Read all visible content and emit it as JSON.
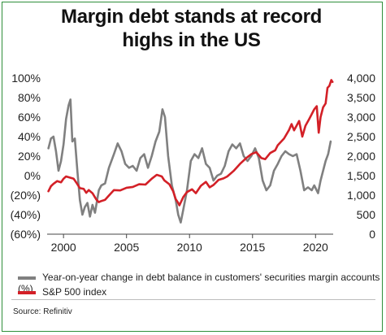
{
  "chart_data": {
    "type": "line",
    "title_lines": [
      "Margin debt stands at record",
      "highs in the US"
    ],
    "y_left": {
      "ticks": [
        "100%",
        "80%",
        "60%",
        "40%",
        "20%",
        "0%",
        "(20%)",
        "(40%)",
        "(60%)"
      ],
      "ylim": [
        -60,
        100
      ]
    },
    "y_right": {
      "ticks": [
        "4,000",
        "3,500",
        "3,000",
        "2,500",
        "2,000",
        "1,500",
        "1,000",
        "500",
        "0"
      ],
      "ylim": [
        0,
        4000
      ]
    },
    "x": {
      "ticks": [
        "2000",
        "2005",
        "2010",
        "2015",
        "2020"
      ],
      "xlim": [
        1998.7,
        2021.4
      ]
    },
    "grid": false,
    "series": [
      {
        "name": "Year-on-year change in debt balance in customers' securities margin accounts (%)",
        "color": "#808080",
        "axis": "left",
        "points": [
          [
            1998.8,
            28
          ],
          [
            1999.0,
            38
          ],
          [
            1999.2,
            40
          ],
          [
            1999.4,
            25
          ],
          [
            1999.6,
            5
          ],
          [
            1999.8,
            15
          ],
          [
            2000.0,
            32
          ],
          [
            2000.2,
            58
          ],
          [
            2000.4,
            72
          ],
          [
            2000.55,
            78
          ],
          [
            2000.7,
            35
          ],
          [
            2000.9,
            38
          ],
          [
            2001.1,
            5
          ],
          [
            2001.3,
            -25
          ],
          [
            2001.5,
            -40
          ],
          [
            2001.7,
            -32
          ],
          [
            2001.9,
            -28
          ],
          [
            2002.1,
            -42
          ],
          [
            2002.3,
            -30
          ],
          [
            2002.5,
            -38
          ],
          [
            2002.8,
            -15
          ],
          [
            2003.0,
            -10
          ],
          [
            2003.3,
            -8
          ],
          [
            2003.6,
            8
          ],
          [
            2004.0,
            22
          ],
          [
            2004.3,
            33
          ],
          [
            2004.6,
            25
          ],
          [
            2004.9,
            12
          ],
          [
            2005.2,
            8
          ],
          [
            2005.5,
            10
          ],
          [
            2005.8,
            5
          ],
          [
            2006.1,
            18
          ],
          [
            2006.4,
            22
          ],
          [
            2006.7,
            8
          ],
          [
            2007.0,
            20
          ],
          [
            2007.3,
            35
          ],
          [
            2007.6,
            45
          ],
          [
            2007.85,
            68
          ],
          [
            2008.05,
            60
          ],
          [
            2008.3,
            20
          ],
          [
            2008.6,
            -10
          ],
          [
            2008.9,
            -25
          ],
          [
            2009.1,
            -40
          ],
          [
            2009.3,
            -48
          ],
          [
            2009.5,
            -35
          ],
          [
            2009.8,
            -15
          ],
          [
            2010.1,
            15
          ],
          [
            2010.4,
            22
          ],
          [
            2010.7,
            18
          ],
          [
            2011.0,
            28
          ],
          [
            2011.3,
            12
          ],
          [
            2011.6,
            8
          ],
          [
            2011.9,
            -5
          ],
          [
            2012.2,
            0
          ],
          [
            2012.5,
            2
          ],
          [
            2012.8,
            10
          ],
          [
            2013.1,
            25
          ],
          [
            2013.4,
            32
          ],
          [
            2013.7,
            28
          ],
          [
            2014.0,
            33
          ],
          [
            2014.3,
            20
          ],
          [
            2014.6,
            15
          ],
          [
            2014.9,
            20
          ],
          [
            2015.2,
            28
          ],
          [
            2015.5,
            18
          ],
          [
            2015.8,
            -5
          ],
          [
            2016.1,
            -15
          ],
          [
            2016.4,
            -10
          ],
          [
            2016.7,
            5
          ],
          [
            2017.0,
            12
          ],
          [
            2017.3,
            20
          ],
          [
            2017.6,
            25
          ],
          [
            2017.9,
            22
          ],
          [
            2018.2,
            20
          ],
          [
            2018.5,
            22
          ],
          [
            2018.8,
            5
          ],
          [
            2019.1,
            -15
          ],
          [
            2019.4,
            -12
          ],
          [
            2019.7,
            -15
          ],
          [
            2019.9,
            -10
          ],
          [
            2020.2,
            -18
          ],
          [
            2020.4,
            -5
          ],
          [
            2020.6,
            5
          ],
          [
            2020.8,
            15
          ],
          [
            2021.0,
            22
          ],
          [
            2021.2,
            35
          ]
        ]
      },
      {
        "name": "S&P 500 index",
        "color": "#d32027",
        "axis": "right",
        "points": [
          [
            1998.8,
            1100
          ],
          [
            1999.0,
            1230
          ],
          [
            1999.2,
            1290
          ],
          [
            1999.5,
            1360
          ],
          [
            1999.8,
            1330
          ],
          [
            2000.0,
            1420
          ],
          [
            2000.2,
            1480
          ],
          [
            2000.5,
            1450
          ],
          [
            2000.8,
            1420
          ],
          [
            2001.0,
            1330
          ],
          [
            2001.3,
            1180
          ],
          [
            2001.6,
            1160
          ],
          [
            2001.8,
            1060
          ],
          [
            2002.0,
            1130
          ],
          [
            2002.3,
            1050
          ],
          [
            2002.6,
            890
          ],
          [
            2002.8,
            820
          ],
          [
            2003.0,
            850
          ],
          [
            2003.3,
            880
          ],
          [
            2003.6,
            990
          ],
          [
            2004.0,
            1130
          ],
          [
            2004.5,
            1120
          ],
          [
            2005.0,
            1190
          ],
          [
            2005.5,
            1210
          ],
          [
            2006.0,
            1280
          ],
          [
            2006.5,
            1270
          ],
          [
            2007.0,
            1420
          ],
          [
            2007.4,
            1520
          ],
          [
            2007.8,
            1480
          ],
          [
            2008.0,
            1380
          ],
          [
            2008.4,
            1280
          ],
          [
            2008.7,
            1100
          ],
          [
            2008.9,
            900
          ],
          [
            2009.1,
            800
          ],
          [
            2009.2,
            740
          ],
          [
            2009.5,
            950
          ],
          [
            2009.8,
            1080
          ],
          [
            2010.2,
            1150
          ],
          [
            2010.5,
            1050
          ],
          [
            2010.9,
            1240
          ],
          [
            2011.3,
            1340
          ],
          [
            2011.6,
            1200
          ],
          [
            2011.9,
            1260
          ],
          [
            2012.3,
            1390
          ],
          [
            2012.7,
            1430
          ],
          [
            2013.0,
            1480
          ],
          [
            2013.5,
            1620
          ],
          [
            2014.0,
            1800
          ],
          [
            2014.5,
            1950
          ],
          [
            2014.9,
            2050
          ],
          [
            2015.3,
            2100
          ],
          [
            2015.7,
            1950
          ],
          [
            2016.0,
            1920
          ],
          [
            2016.4,
            2080
          ],
          [
            2016.8,
            2150
          ],
          [
            2017.0,
            2280
          ],
          [
            2017.5,
            2450
          ],
          [
            2017.9,
            2670
          ],
          [
            2018.1,
            2820
          ],
          [
            2018.3,
            2660
          ],
          [
            2018.7,
            2900
          ],
          [
            2018.95,
            2500
          ],
          [
            2019.2,
            2780
          ],
          [
            2019.5,
            2950
          ],
          [
            2019.9,
            3200
          ],
          [
            2020.1,
            3280
          ],
          [
            2020.25,
            2600
          ],
          [
            2020.4,
            3000
          ],
          [
            2020.6,
            3250
          ],
          [
            2020.8,
            3350
          ],
          [
            2020.95,
            3750
          ],
          [
            2021.1,
            3800
          ],
          [
            2021.25,
            3950
          ],
          [
            2021.35,
            3900
          ]
        ]
      }
    ]
  },
  "legend": [
    {
      "label": "Year-on-year change in debt balance in customers' securities margin accounts (%)",
      "color": "#808080"
    },
    {
      "label": "S&P 500 index",
      "color": "#d32027"
    }
  ],
  "source": "Source: Refinitiv"
}
